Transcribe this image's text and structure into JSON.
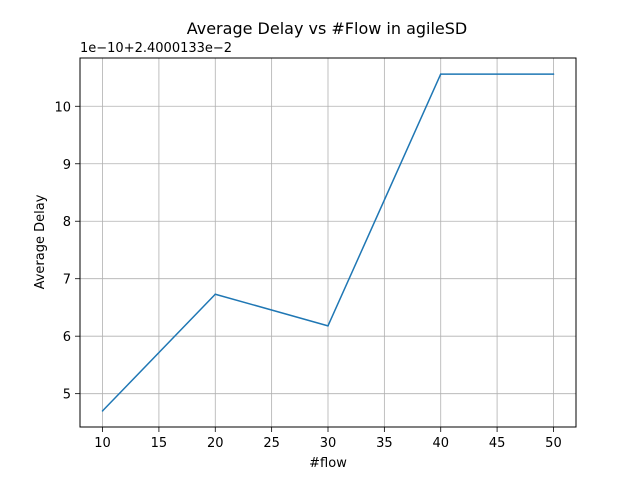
{
  "chart_data": {
    "type": "line",
    "title": "Average Delay vs #Flow in agileSD",
    "xlabel": "#flow",
    "ylabel": "Average Delay",
    "y_offset_text": "1e−10+2.4000133e−2",
    "x": [
      10,
      20,
      30,
      40,
      50
    ],
    "series": [
      {
        "values": [
          4.7,
          6.73,
          6.18,
          10.56,
          10.56
        ]
      }
    ],
    "xlim": [
      8,
      52
    ],
    "ylim": [
      4.42,
      10.84
    ],
    "xticks": [
      10,
      15,
      20,
      25,
      30,
      35,
      40,
      45,
      50
    ],
    "yticks": [
      5,
      6,
      7,
      8,
      9,
      10
    ],
    "grid": true,
    "line_color": "#1f77b4"
  }
}
